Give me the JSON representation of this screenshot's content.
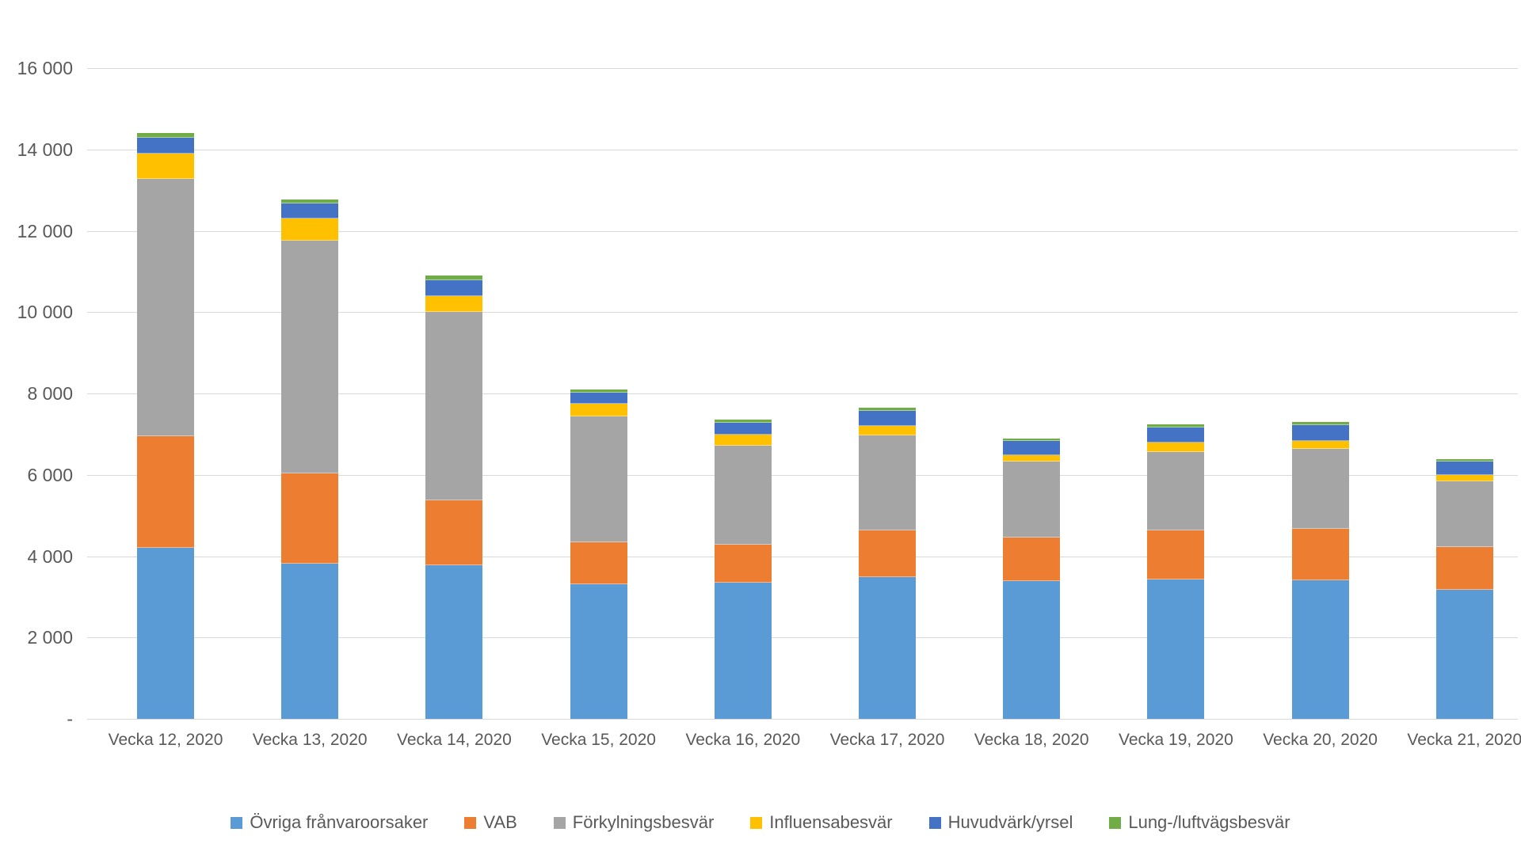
{
  "chart_data": {
    "type": "bar",
    "stacked": true,
    "grid": true,
    "legend_position": "bottom",
    "categories": [
      "Vecka 12, 2020",
      "Vecka 13, 2020",
      "Vecka 14, 2020",
      "Vecka 15, 2020",
      "Vecka 16, 2020",
      "Vecka 17, 2020",
      "Vecka 18, 2020",
      "Vecka 19, 2020",
      "Vecka 20, 2020",
      "Vecka 21, 2020"
    ],
    "series": [
      {
        "name": "Övriga frånvaroorsaker",
        "color": "#5B9BD5",
        "values": [
          4200,
          3820,
          3770,
          3300,
          3350,
          3480,
          3390,
          3435,
          3405,
          3165
        ]
      },
      {
        "name": "VAB",
        "color": "#ED7D31",
        "values": [
          2750,
          2210,
          1600,
          1050,
          925,
          1150,
          1065,
          1200,
          1275,
          1065
        ]
      },
      {
        "name": "Förkylningsbesvär",
        "color": "#A5A5A5",
        "values": [
          6330,
          5720,
          4630,
          3090,
          2435,
          2335,
          1875,
          1930,
          1965,
          1610
        ]
      },
      {
        "name": "Influensabesvär",
        "color": "#FFC000",
        "values": [
          620,
          550,
          390,
          300,
          270,
          230,
          160,
          230,
          180,
          160
        ]
      },
      {
        "name": "Huvudvärk/yrsel",
        "color": "#4472C4",
        "values": [
          380,
          380,
          400,
          280,
          295,
          380,
          335,
          370,
          390,
          325
        ]
      },
      {
        "name": "Lung-/luftvägsbesvär",
        "color": "#70AD47",
        "values": [
          130,
          90,
          120,
          85,
          85,
          85,
          75,
          80,
          90,
          70
        ]
      }
    ],
    "y_axis": {
      "min": 0,
      "max": 16000,
      "step": 2000,
      "tick_labels": [
        "-",
        "2 000",
        "4 000",
        "6 000",
        "8 000",
        "10 000",
        "12 000",
        "14 000",
        "16 000"
      ]
    }
  }
}
